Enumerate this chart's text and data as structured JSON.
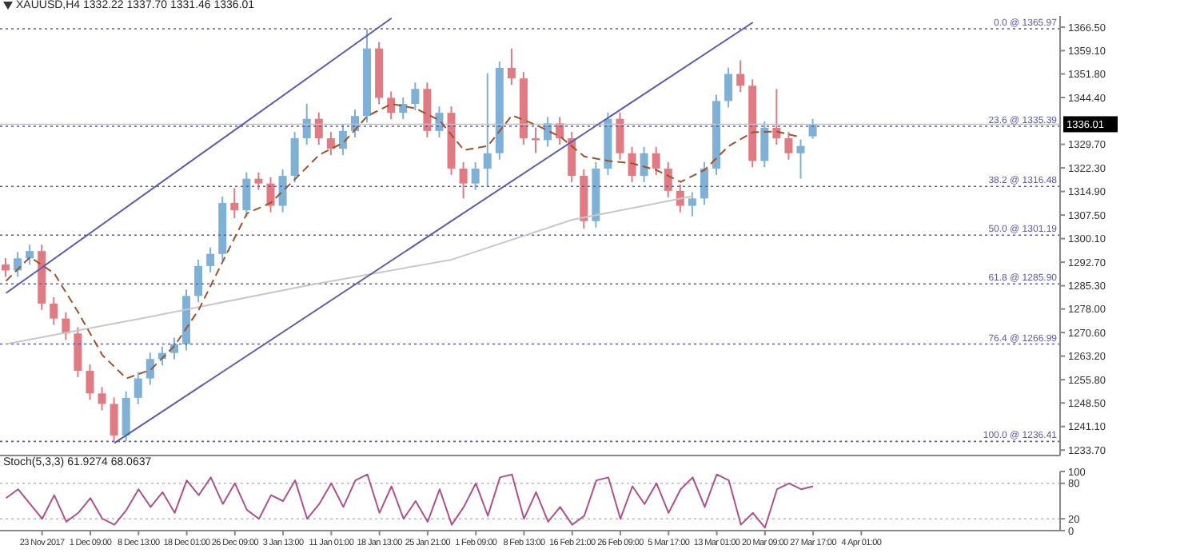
{
  "chart_data": [
    {
      "type": "candlestick",
      "title": "XAUUSD,H4  1332.22 1337.70 1331.46 1336.01",
      "categories": [
        null,
        null,
        null,
        null,
        null,
        null,
        null,
        null,
        null,
        null,
        null,
        null,
        null,
        null,
        null,
        null,
        null,
        null,
        null,
        null,
        null,
        null,
        null,
        null,
        null,
        null,
        null,
        null,
        null,
        null,
        null,
        null,
        null,
        null,
        null,
        null,
        null,
        null,
        null,
        null,
        null,
        null,
        null,
        null,
        null,
        null,
        null,
        null,
        null,
        null,
        null,
        null,
        null,
        null,
        null,
        null,
        null,
        null,
        null,
        null,
        null,
        null,
        null,
        null,
        null,
        null,
        null,
        null,
        null,
        null,
        null,
        null,
        null,
        null,
        null,
        null,
        null,
        null,
        null,
        null,
        null,
        null,
        null,
        null,
        null,
        null,
        null,
        null
      ],
      "ohlc": [
        [
          1292.0,
          1294.0,
          1288.1,
          1290.1
        ],
        [
          1290.1,
          1295.9,
          1288.1,
          1293.9
        ],
        [
          1293.9,
          1298.2,
          1291.9,
          1296.2
        ],
        [
          1296.2,
          1298.2,
          1277.7,
          1279.7
        ],
        [
          1279.7,
          1281.7,
          1273.0,
          1275.0
        ],
        [
          1275.0,
          1277.0,
          1268.3,
          1270.3
        ],
        [
          1270.3,
          1272.3,
          1256.6,
          1258.6
        ],
        [
          1258.6,
          1260.6,
          1249.5,
          1251.5
        ],
        [
          1251.5,
          1253.5,
          1246.2,
          1248.2
        ],
        [
          1248.2,
          1250.2,
          1236.41,
          1238.3
        ],
        [
          1238.3,
          1252.1,
          1236.5,
          1250.1
        ],
        [
          1250.1,
          1258.2,
          1248.1,
          1256.2
        ],
        [
          1256.2,
          1264.3,
          1254.2,
          1262.3
        ],
        [
          1262.3,
          1266.2,
          1260.3,
          1264.2
        ],
        [
          1264.2,
          1269.0,
          1262.2,
          1267.0
        ],
        [
          1267.0,
          1284.1,
          1265.0,
          1282.1
        ],
        [
          1282.1,
          1293.5,
          1280.1,
          1291.5
        ],
        [
          1291.5,
          1297.3,
          1289.5,
          1295.3
        ],
        [
          1295.3,
          1313.3,
          1293.3,
          1311.3
        ],
        [
          1311.3,
          1316.0,
          1306.5,
          1309.0
        ],
        [
          1309.0,
          1320.9,
          1307.0,
          1318.9
        ],
        [
          1318.9,
          1320.9,
          1315.4,
          1317.4
        ],
        [
          1317.4,
          1319.4,
          1308.4,
          1310.4
        ],
        [
          1310.4,
          1321.8,
          1308.4,
          1319.8
        ],
        [
          1319.8,
          1333.6,
          1317.8,
          1331.6
        ],
        [
          1331.6,
          1342.4,
          1329.6,
          1337.7
        ],
        [
          1337.7,
          1339.7,
          1329.6,
          1331.6
        ],
        [
          1331.6,
          1333.6,
          1326.3,
          1328.3
        ],
        [
          1328.3,
          1335.9,
          1326.3,
          1333.9
        ],
        [
          1333.9,
          1340.6,
          1331.9,
          1338.6
        ],
        [
          1338.6,
          1365.97,
          1336.6,
          1359.8
        ],
        [
          1359.8,
          1361.8,
          1342.3,
          1344.3
        ],
        [
          1344.3,
          1346.3,
          1337.6,
          1339.6
        ],
        [
          1339.6,
          1344.4,
          1337.6,
          1342.4
        ],
        [
          1342.4,
          1349.1,
          1340.4,
          1347.1
        ],
        [
          1347.1,
          1349.1,
          1331.9,
          1333.9
        ],
        [
          1333.9,
          1341.6,
          1331.9,
          1339.6
        ],
        [
          1339.6,
          1341.6,
          1320.1,
          1322.1
        ],
        [
          1322.1,
          1324.1,
          1312.7,
          1317.4
        ],
        [
          1317.4,
          1324.1,
          1315.4,
          1322.1
        ],
        [
          1322.1,
          1352.0,
          1316.5,
          1326.9
        ],
        [
          1326.9,
          1355.7,
          1324.9,
          1353.7
        ],
        [
          1353.7,
          1359.8,
          1348.4,
          1350.4
        ],
        [
          1350.4,
          1352.4,
          1329.6,
          1331.6
        ],
        [
          1331.6,
          1335.0,
          1327.0,
          1331.0
        ],
        [
          1331.0,
          1338.3,
          1329.0,
          1336.3
        ],
        [
          1336.3,
          1338.3,
          1329.6,
          1331.6
        ],
        [
          1331.6,
          1333.6,
          1317.8,
          1319.8
        ],
        [
          1319.8,
          1321.8,
          1303.3,
          1305.6
        ],
        [
          1305.6,
          1324.1,
          1303.6,
          1322.1
        ],
        [
          1322.1,
          1339.7,
          1320.1,
          1337.7
        ],
        [
          1337.7,
          1339.7,
          1324.9,
          1326.9
        ],
        [
          1326.9,
          1328.9,
          1317.8,
          1319.8
        ],
        [
          1319.8,
          1328.9,
          1317.8,
          1326.9
        ],
        [
          1326.9,
          1328.9,
          1320.1,
          1322.1
        ],
        [
          1322.1,
          1324.1,
          1313.1,
          1315.1
        ],
        [
          1315.1,
          1317.1,
          1308.4,
          1310.4
        ],
        [
          1310.4,
          1314.7,
          1307.1,
          1312.7
        ],
        [
          1312.7,
          1324.1,
          1310.7,
          1322.1
        ],
        [
          1322.1,
          1345.3,
          1320.1,
          1343.3
        ],
        [
          1343.3,
          1353.8,
          1341.3,
          1351.8
        ],
        [
          1351.8,
          1356.1,
          1346.1,
          1348.1
        ],
        [
          1348.1,
          1350.1,
          1322.5,
          1324.5
        ],
        [
          1324.5,
          1336.9,
          1322.5,
          1334.9
        ],
        [
          1334.9,
          1347.1,
          1329.6,
          1331.6
        ],
        [
          1331.6,
          1333.6,
          1324.9,
          1326.9
        ],
        [
          1326.9,
          1331.2,
          1318.9,
          1329.2
        ],
        [
          1332.22,
          1337.7,
          1331.46,
          1336.01
        ],
        null,
        null,
        null,
        null,
        null,
        null,
        null,
        null,
        null,
        null,
        null,
        null,
        null,
        null,
        null,
        null,
        null,
        null,
        null,
        null
      ],
      "colors": [
        "#e07b84",
        "#7fb0d6",
        "#7fb0d6",
        "#e07b84",
        "#e07b84",
        "#e07b84",
        "#e07b84",
        "#e07b84",
        "#e07b84",
        "#e07b84",
        "#7fb0d6",
        "#7fb0d6",
        "#7fb0d6",
        "#7fb0d6",
        "#7fb0d6",
        "#7fb0d6",
        "#7fb0d6",
        "#7fb0d6",
        "#7fb0d6",
        "#e07b84",
        "#7fb0d6",
        "#e07b84",
        "#e07b84",
        "#7fb0d6",
        "#7fb0d6",
        "#7fb0d6",
        "#e07b84",
        "#e07b84",
        "#7fb0d6",
        "#7fb0d6",
        "#7fb0d6",
        "#e07b84",
        "#e07b84",
        "#7fb0d6",
        "#7fb0d6",
        "#e07b84",
        "#7fb0d6",
        "#e07b84",
        "#e07b84",
        "#7fb0d6",
        "#7fb0d6",
        "#7fb0d6",
        "#e07b84",
        "#e07b84",
        "#e07b84",
        "#7fb0d6",
        "#e07b84",
        "#e07b84",
        "#e07b84",
        "#7fb0d6",
        "#7fb0d6",
        "#e07b84",
        "#e07b84",
        "#7fb0d6",
        "#e07b84",
        "#e07b84",
        "#e07b84",
        "#7fb0d6",
        "#7fb0d6",
        "#7fb0d6",
        "#7fb0d6",
        "#e07b84",
        "#e07b84",
        "#7fb0d6",
        "#e07b84",
        "#e07b84",
        "#7fb0d6",
        "#7fb0d6",
        null,
        null,
        null,
        null,
        null,
        null,
        null,
        null,
        null,
        null,
        null,
        null,
        null,
        null,
        null,
        null,
        null,
        null,
        null,
        null
      ],
      "series": [
        {
          "type": "line",
          "color": "#c8c8c8",
          "line_style": "solid",
          "values": [
            1267.0,
            null,
            null,
            null,
            null,
            null,
            null,
            null,
            null,
            null,
            null,
            null,
            1275.6,
            null,
            null,
            null,
            null,
            null,
            null,
            null,
            null,
            null,
            null,
            null,
            null,
            1285.4,
            null,
            null,
            null,
            null,
            null,
            null,
            null,
            null,
            null,
            null,
            null,
            1293.5,
            null,
            null,
            null,
            null,
            null,
            null,
            null,
            null,
            null,
            1306.0,
            null,
            null,
            null,
            null,
            null,
            null,
            null,
            null,
            null,
            1313.4,
            null,
            null,
            null,
            null,
            null,
            null,
            null,
            null,
            null,
            null,
            null,
            null,
            null,
            null,
            null,
            null,
            null,
            null,
            null,
            null,
            null,
            null,
            null,
            null,
            null,
            null,
            null,
            null,
            null,
            null
          ]
        },
        {
          "type": "line",
          "color": "#a0522d",
          "line_style": "dashed",
          "values": [
            1286.8,
            null,
            1294.3,
            null,
            1289.2,
            null,
            1276.9,
            null,
            1263.5,
            null,
            1256.2,
            null,
            1258.9,
            null,
            1266.5,
            null,
            1277.8,
            null,
            1293.0,
            null,
            1308.0,
            null,
            1311.4,
            null,
            1318.8,
            null,
            1326.4,
            null,
            1330.2,
            null,
            1338.6,
            null,
            1342.4,
            null,
            1341.0,
            null,
            1337.2,
            null,
            1327.9,
            null,
            1329.2,
            null,
            1338.8,
            null,
            1335.8,
            null,
            1332.1,
            null,
            1325.9,
            null,
            1324.5,
            null,
            1323.7,
            null,
            1321.6,
            null,
            1317.9,
            null,
            1321.7,
            null,
            1329.2,
            null,
            1333.5,
            null,
            1333.7,
            null,
            1331.9,
            null,
            null,
            null,
            null,
            null,
            null,
            null,
            null,
            null,
            null,
            null,
            null,
            null,
            null,
            null,
            null,
            null,
            null,
            null,
            null,
            null
          ]
        },
        {
          "type": "line",
          "color": "#5a5ab4",
          "line_style": "solid",
          "values": [
            1283.0,
            null,
            null,
            null,
            null,
            null,
            null,
            null,
            null,
            null,
            null,
            null,
            null,
            null,
            null,
            null,
            null,
            null,
            null,
            null,
            null,
            null,
            null,
            null,
            null,
            null,
            null,
            null,
            null,
            null,
            null,
            null,
            1369.3,
            null,
            null,
            null,
            null,
            null,
            null,
            null,
            null,
            null,
            null,
            null,
            null,
            null,
            null,
            null,
            null,
            null,
            null,
            null,
            null,
            null,
            null,
            null,
            null,
            null,
            null,
            null,
            null,
            null,
            null,
            null,
            null,
            null,
            null,
            null,
            null,
            null,
            null,
            null,
            null,
            null,
            null,
            null,
            null,
            null,
            null,
            null,
            null,
            null,
            null,
            null,
            null,
            null,
            null,
            null
          ]
        },
        {
          "type": "line",
          "color": "#5a5ab4",
          "line_style": "solid",
          "values": [
            null,
            null,
            null,
            null,
            null,
            null,
            null,
            null,
            null,
            1235.9,
            null,
            null,
            null,
            null,
            null,
            null,
            null,
            null,
            null,
            null,
            null,
            null,
            null,
            null,
            null,
            null,
            null,
            null,
            null,
            null,
            null,
            null,
            null,
            null,
            null,
            null,
            null,
            null,
            null,
            null,
            null,
            null,
            null,
            null,
            null,
            null,
            null,
            null,
            null,
            null,
            null,
            null,
            null,
            null,
            null,
            null,
            null,
            null,
            null,
            null,
            null,
            null,
            1368.0,
            null,
            null,
            null,
            null,
            null,
            null,
            null,
            null,
            null,
            null,
            null,
            null,
            null,
            null,
            null,
            null,
            null,
            null,
            null,
            null,
            null,
            null,
            null,
            null,
            null
          ]
        }
      ],
      "ref_lines": [
        {
          "axis": "y",
          "value": 1365.97,
          "label": "0.0 @ 1365.97",
          "color": "#5a5ab4",
          "line_style": "dotted"
        },
        {
          "axis": "y",
          "value": 1335.39,
          "label": "23.6 @ 1335.39",
          "color": "#5a5ab4",
          "line_style": "dotted"
        },
        {
          "axis": "y",
          "value": 1316.48,
          "label": "38.2 @ 1316.48",
          "color": "#5a5ab4",
          "line_style": "dotted"
        },
        {
          "axis": "y",
          "value": 1301.19,
          "label": "50.0 @ 1301.19",
          "color": "#5a5ab4",
          "line_style": "dotted"
        },
        {
          "axis": "y",
          "value": 1285.9,
          "label": "61.8 @ 1285.90",
          "color": "#5a5ab4",
          "line_style": "dotted"
        },
        {
          "axis": "y",
          "value": 1266.99,
          "label": "76.4 @ 1266.99",
          "color": "#5a5ab4",
          "line_style": "dotted"
        },
        {
          "axis": "y",
          "value": 1236.41,
          "label": "100.0 @ 1236.41",
          "color": "#5a5ab4",
          "line_style": "dotted"
        },
        {
          "axis": "y",
          "value": 1336.01,
          "label": "1336.01",
          "color": "#c0c0c0",
          "line_style": "solid"
        }
      ],
      "ylim": [
        1232,
        1370
      ],
      "yticks": [
        {
          "value": 1233.7,
          "label": "1233.70"
        },
        {
          "value": 1241.1,
          "label": "1241.10"
        },
        {
          "value": 1248.5,
          "label": "1248.50"
        },
        {
          "value": 1255.8,
          "label": "1255.80"
        },
        {
          "value": 1263.2,
          "label": "1263.20"
        },
        {
          "value": 1270.6,
          "label": "1270.60"
        },
        {
          "value": 1278.0,
          "label": "1278.00"
        },
        {
          "value": 1285.3,
          "label": "1285.30"
        },
        {
          "value": 1292.7,
          "label": "1292.70"
        },
        {
          "value": 1300.1,
          "label": "1300.10"
        },
        {
          "value": 1307.5,
          "label": "1307.50"
        },
        {
          "value": 1314.9,
          "label": "1314.90"
        },
        {
          "value": 1322.3,
          "label": "1322.30"
        },
        {
          "value": 1329.7,
          "label": "1329.70"
        },
        {
          "value": 1344.4,
          "label": "1344.40"
        },
        {
          "value": 1351.8,
          "label": "1351.80"
        },
        {
          "value": 1359.1,
          "label": "1359.10"
        },
        {
          "value": 1366.5,
          "label": "1366.50"
        }
      ],
      "tick_labels": "y"
    },
    {
      "type": "line",
      "title": "Stoch(5,3,3) 61.9274 68.0637",
      "categories": [
        null,
        null,
        null,
        "23 Nov 2017",
        null,
        null,
        null,
        "1 Dec 09:00",
        null,
        null,
        null,
        "8 Dec 13:00",
        null,
        null,
        null,
        "18 Dec 01:00",
        null,
        null,
        null,
        "26 Dec 09:00",
        null,
        null,
        null,
        "3 Jan 13:00",
        null,
        null,
        null,
        "11 Jan 01:00",
        null,
        null,
        null,
        "18 Jan 13:00",
        null,
        null,
        null,
        "25 Jan 21:00",
        null,
        null,
        null,
        "1 Feb 09:00",
        null,
        null,
        null,
        "8 Feb 13:00",
        null,
        null,
        null,
        "16 Feb 21:00",
        null,
        null,
        null,
        "26 Feb 09:00",
        null,
        null,
        null,
        "5 Mar 17:00",
        null,
        null,
        null,
        "13 Mar 01:00",
        null,
        null,
        null,
        "20 Mar 09:00",
        null,
        null,
        null,
        "27 Mar 17:00",
        null,
        null,
        null,
        "4 Apr 01:00",
        null,
        null,
        null,
        null,
        null,
        null,
        null,
        null,
        null,
        null,
        null,
        null,
        null,
        null,
        null,
        null
      ],
      "series": [
        {
          "color": "#b0508a",
          "values": [
            55,
            70,
            45,
            20,
            60,
            15,
            30,
            55,
            20,
            10,
            35,
            70,
            40,
            65,
            30,
            85,
            60,
            90,
            45,
            80,
            35,
            20,
            60,
            50,
            85,
            20,
            45,
            80,
            40,
            85,
            95,
            30,
            75,
            20,
            50,
            15,
            70,
            10,
            40,
            80,
            25,
            90,
            95,
            20,
            65,
            15,
            40,
            10,
            25,
            85,
            90,
            20,
            75,
            45,
            80,
            30,
            70,
            90,
            40,
            95,
            85,
            10,
            30,
            5,
            70,
            80,
            70,
            75,
            null,
            null,
            null,
            null,
            null,
            null,
            null,
            null,
            null,
            null,
            null,
            null,
            null,
            null,
            null,
            null,
            null,
            null,
            null,
            null
          ]
        }
      ],
      "ref_lines": [
        {
          "axis": "y",
          "value": 80,
          "color": "#b8b8b8",
          "line_style": "dotted"
        },
        {
          "axis": "y",
          "value": 20,
          "color": "#b8b8b8",
          "line_style": "dotted"
        }
      ],
      "ylim": [
        0,
        100
      ],
      "yticks": [
        0,
        20,
        80,
        100
      ]
    }
  ]
}
